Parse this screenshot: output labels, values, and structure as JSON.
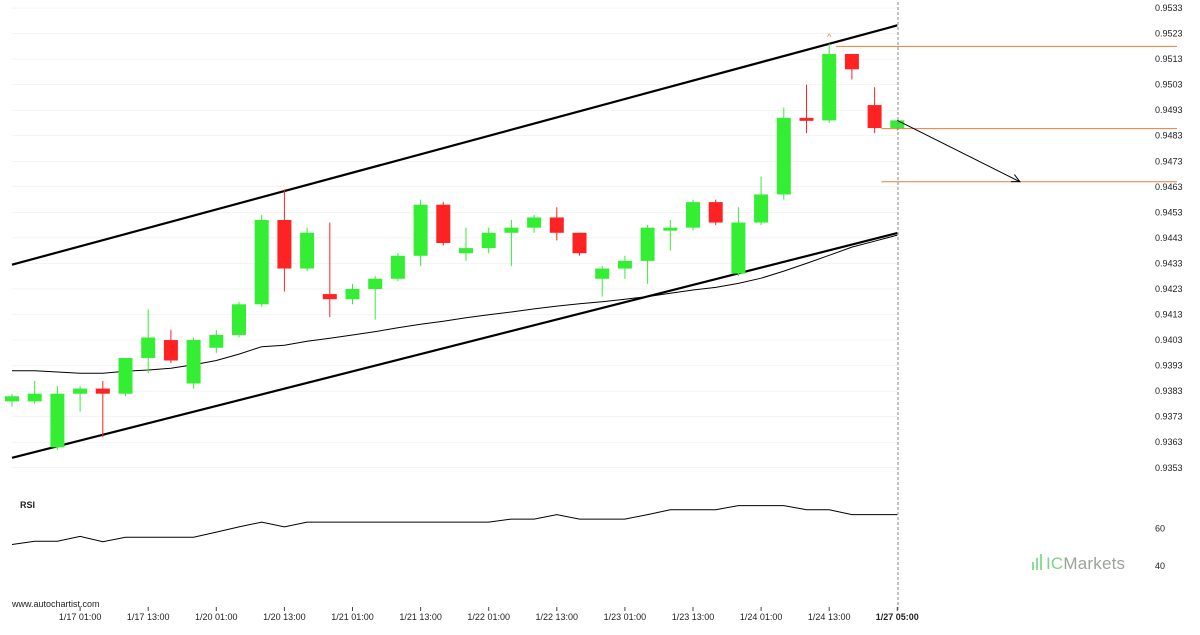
{
  "chart_data": {
    "type": "candlestick",
    "source": "www.autochartist.com",
    "brand": {
      "prefix": "IC",
      "name": "Markets"
    },
    "colors": {
      "up": "#33ee33",
      "down": "#ff2222",
      "line": "#000000",
      "level": "#f07a3a",
      "separator": "#888888",
      "grid": "#e8e8e8"
    },
    "price_axis": {
      "ticks": [
        "0.9533",
        "0.9523",
        "0.9513",
        "0.9503",
        "0.9493",
        "0.9483",
        "0.9473",
        "0.9463",
        "0.9453",
        "0.9443",
        "0.9433",
        "0.9423",
        "0.9413",
        "0.9403",
        "0.9393",
        "0.9383",
        "0.9373",
        "0.9363",
        "0.9353"
      ],
      "range": [
        0.9349,
        0.9533
      ],
      "side": "right"
    },
    "x_axis": {
      "ticks": [
        {
          "label": "1/17 01:00",
          "index": 3
        },
        {
          "label": "1/17 13:00",
          "index": 6
        },
        {
          "label": "1/20 01:00",
          "index": 9
        },
        {
          "label": "1/20 13:00",
          "index": 12
        },
        {
          "label": "1/21 01:00",
          "index": 15
        },
        {
          "label": "1/21 13:00",
          "index": 18
        },
        {
          "label": "1/22 01:00",
          "index": 21
        },
        {
          "label": "1/22 13:00",
          "index": 24
        },
        {
          "label": "1/23 01:00",
          "index": 27
        },
        {
          "label": "1/23 13:00",
          "index": 30
        },
        {
          "label": "1/24 01:00",
          "index": 33
        },
        {
          "label": "1/24 13:00",
          "index": 36
        },
        {
          "label": "1/27 05:00",
          "index": 39,
          "bold": true
        }
      ]
    },
    "candles": [
      {
        "o": 0.9379,
        "h": 0.9382,
        "l": 0.9377,
        "c": 0.9381
      },
      {
        "o": 0.9379,
        "h": 0.9387,
        "l": 0.9378,
        "c": 0.9382
      },
      {
        "o": 0.9361,
        "h": 0.9385,
        "l": 0.936,
        "c": 0.9382
      },
      {
        "o": 0.9382,
        "h": 0.9385,
        "l": 0.9375,
        "c": 0.9384
      },
      {
        "o": 0.9384,
        "h": 0.9387,
        "l": 0.9365,
        "c": 0.9382
      },
      {
        "o": 0.9382,
        "h": 0.9396,
        "l": 0.9381,
        "c": 0.9396
      },
      {
        "o": 0.9396,
        "h": 0.9415,
        "l": 0.939,
        "c": 0.9404
      },
      {
        "o": 0.9403,
        "h": 0.9407,
        "l": 0.9394,
        "c": 0.9395
      },
      {
        "o": 0.9386,
        "h": 0.9404,
        "l": 0.9384,
        "c": 0.9403
      },
      {
        "o": 0.94,
        "h": 0.9407,
        "l": 0.9398,
        "c": 0.9405
      },
      {
        "o": 0.9405,
        "h": 0.9418,
        "l": 0.9404,
        "c": 0.9417
      },
      {
        "o": 0.9417,
        "h": 0.9452,
        "l": 0.9416,
        "c": 0.945
      },
      {
        "o": 0.945,
        "h": 0.9462,
        "l": 0.9422,
        "c": 0.9431
      },
      {
        "o": 0.9431,
        "h": 0.9447,
        "l": 0.943,
        "c": 0.9445
      },
      {
        "o": 0.9421,
        "h": 0.9449,
        "l": 0.9412,
        "c": 0.9419
      },
      {
        "o": 0.9419,
        "h": 0.9425,
        "l": 0.9417,
        "c": 0.9423
      },
      {
        "o": 0.9423,
        "h": 0.9428,
        "l": 0.9411,
        "c": 0.9427
      },
      {
        "o": 0.9427,
        "h": 0.9437,
        "l": 0.9426,
        "c": 0.9436
      },
      {
        "o": 0.9436,
        "h": 0.9458,
        "l": 0.9432,
        "c": 0.9456
      },
      {
        "o": 0.9456,
        "h": 0.9457,
        "l": 0.944,
        "c": 0.9441
      },
      {
        "o": 0.9437,
        "h": 0.9447,
        "l": 0.9434,
        "c": 0.9439
      },
      {
        "o": 0.9439,
        "h": 0.9447,
        "l": 0.9437,
        "c": 0.9445
      },
      {
        "o": 0.9445,
        "h": 0.945,
        "l": 0.9432,
        "c": 0.9447
      },
      {
        "o": 0.9447,
        "h": 0.9452,
        "l": 0.9445,
        "c": 0.9451
      },
      {
        "o": 0.9451,
        "h": 0.9455,
        "l": 0.9442,
        "c": 0.9445
      },
      {
        "o": 0.9445,
        "h": 0.9445,
        "l": 0.9436,
        "c": 0.9437
      },
      {
        "o": 0.9427,
        "h": 0.9432,
        "l": 0.942,
        "c": 0.9431
      },
      {
        "o": 0.9431,
        "h": 0.9436,
        "l": 0.9427,
        "c": 0.9434
      },
      {
        "o": 0.9434,
        "h": 0.9448,
        "l": 0.9425,
        "c": 0.9447
      },
      {
        "o": 0.9447,
        "h": 0.945,
        "l": 0.9438,
        "c": 0.9447
      },
      {
        "o": 0.9447,
        "h": 0.9458,
        "l": 0.9446,
        "c": 0.9457
      },
      {
        "o": 0.9457,
        "h": 0.9458,
        "l": 0.9448,
        "c": 0.9449
      },
      {
        "o": 0.9429,
        "h": 0.9455,
        "l": 0.9428,
        "c": 0.9449
      },
      {
        "o": 0.9449,
        "h": 0.9467,
        "l": 0.9448,
        "c": 0.946
      },
      {
        "o": 0.946,
        "h": 0.9494,
        "l": 0.9458,
        "c": 0.949
      },
      {
        "o": 0.949,
        "h": 0.9503,
        "l": 0.9484,
        "c": 0.9489
      },
      {
        "o": 0.9489,
        "h": 0.9519,
        "l": 0.9488,
        "c": 0.9515
      },
      {
        "o": 0.9515,
        "h": 0.9515,
        "l": 0.9505,
        "c": 0.9509
      },
      {
        "o": 0.9495,
        "h": 0.9502,
        "l": 0.9484,
        "c": 0.9486
      },
      {
        "o": 0.9486,
        "h": 0.9489,
        "l": 0.9485,
        "c": 0.9489
      }
    ],
    "moving_average": [
      0.9391,
      0.9391,
      0.93905,
      0.939,
      0.939,
      0.93908,
      0.93913,
      0.9392,
      0.93933,
      0.9395,
      0.93975,
      0.94004,
      0.9401,
      0.94025,
      0.94037,
      0.9405,
      0.94063,
      0.94078,
      0.94092,
      0.94104,
      0.94117,
      0.94129,
      0.9414,
      0.94152,
      0.94163,
      0.94172,
      0.9418,
      0.9419,
      0.942,
      0.94213,
      0.94226,
      0.94236,
      0.94252,
      0.94272,
      0.943,
      0.9433,
      0.94362,
      0.94394,
      0.94417,
      0.94441
    ],
    "channel": {
      "upper": {
        "start_index": 0,
        "start_price": 0.94325,
        "end_index": 39,
        "end_price": 0.95262
      },
      "lower": {
        "start_index": 0,
        "start_price": 0.93569,
        "end_index": 39,
        "end_price": 0.94449
      }
    },
    "levels": [
      {
        "price": 0.9518,
        "from_index": 36.3,
        "name": "recent-high"
      },
      {
        "price": 0.94858,
        "from_index": 38.3,
        "name": "current-price"
      },
      {
        "price": 0.9465,
        "from_index": 38.3,
        "name": "target"
      }
    ],
    "forecast_arrow": {
      "from_index": 39,
      "from_price": 0.9489,
      "to_index": 44.4,
      "to_price": 0.9465
    },
    "marker": {
      "index": 36,
      "price": 0.952,
      "symbol": "^"
    },
    "rsi": {
      "label": "RSI",
      "ticks": [
        "60",
        "40"
      ],
      "range": [
        33,
        78
      ],
      "values": [
        51.5,
        53.2,
        53.2,
        55.8,
        53.0,
        55.4,
        55.4,
        55.4,
        55.4,
        58.1,
        60.9,
        63.5,
        60.9,
        63.5,
        63.5,
        63.5,
        63.5,
        63.5,
        63.5,
        63.5,
        63.5,
        63.5,
        65.1,
        65.1,
        67.5,
        65.1,
        65.1,
        65.1,
        67.5,
        70.1,
        70.1,
        70.1,
        72.3,
        72.3,
        72.3,
        70.1,
        70.1,
        67.5,
        67.5,
        67.5
      ]
    }
  }
}
